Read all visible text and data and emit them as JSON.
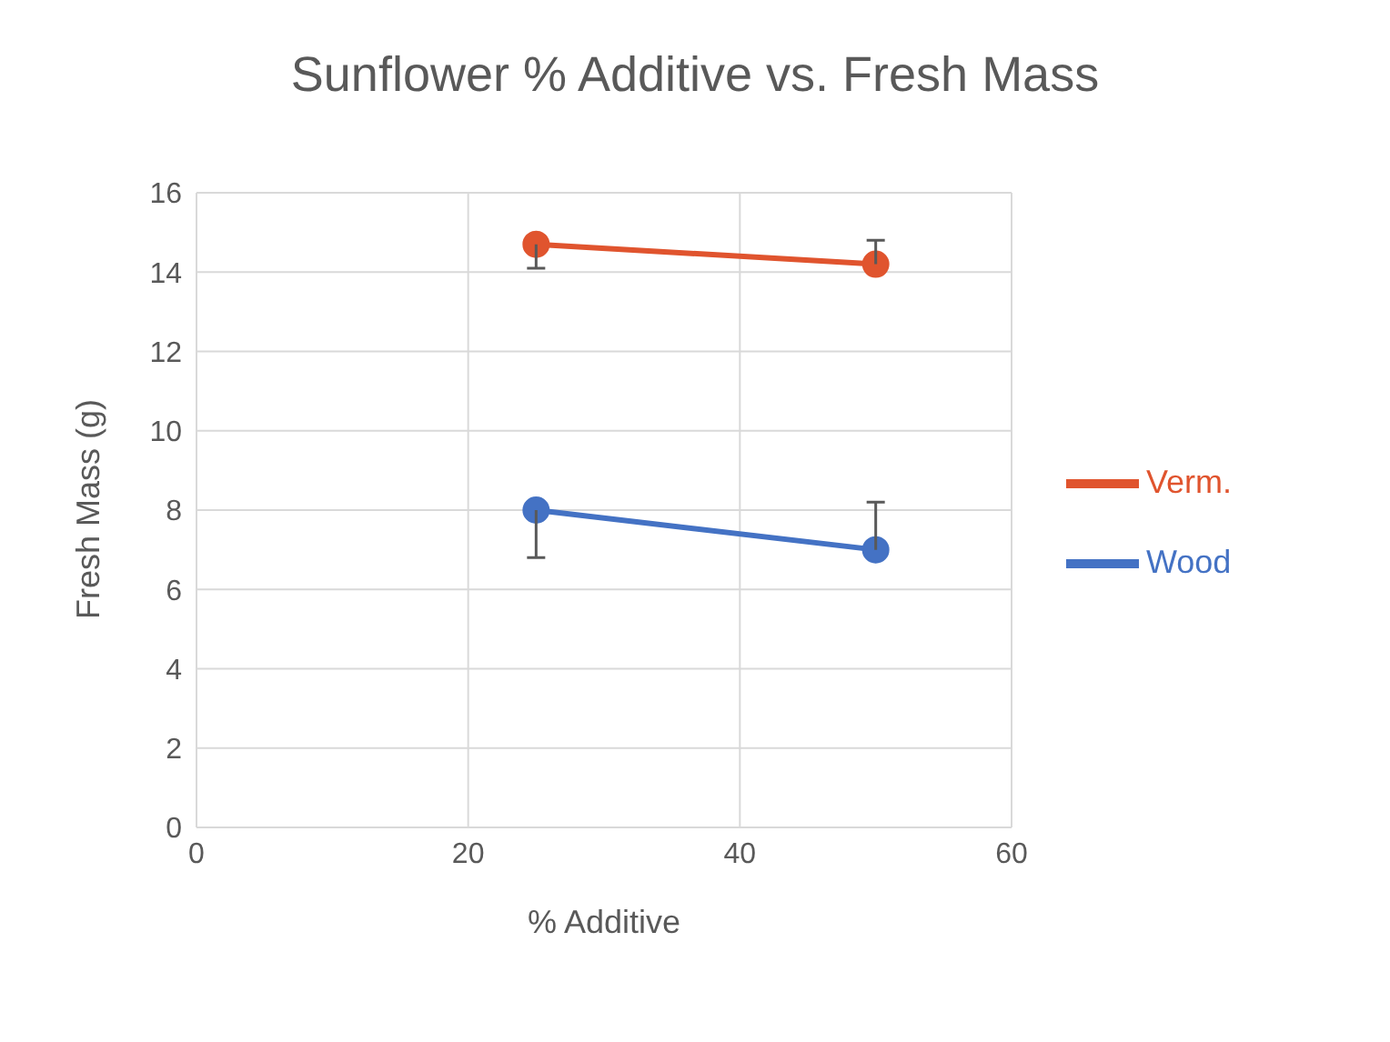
{
  "chart_data": {
    "type": "line",
    "title": "Sunflower % Additive vs. Fresh Mass",
    "xlabel": "% Additive",
    "ylabel": "Fresh Mass (g)",
    "x": [
      25,
      50
    ],
    "series": [
      {
        "name": "Wood",
        "color": "#4472c4",
        "values": [
          8,
          7
        ],
        "errors": [
          [
            6.8,
            8
          ],
          [
            7,
            8.2
          ]
        ]
      },
      {
        "name": "Verm.",
        "color": "#e0542e",
        "values": [
          14.7,
          14.2
        ],
        "errors": [
          [
            14.1,
            14.7
          ],
          [
            14.2,
            14.8
          ]
        ]
      }
    ],
    "xlim": [
      0,
      60
    ],
    "xticks": [
      0,
      20,
      40,
      60
    ],
    "ylim": [
      0,
      16
    ],
    "yticks": [
      0,
      2,
      4,
      6,
      8,
      10,
      12,
      14,
      16
    ],
    "grid": true,
    "legend": "right",
    "marker": "circle",
    "line_style": "solid"
  }
}
